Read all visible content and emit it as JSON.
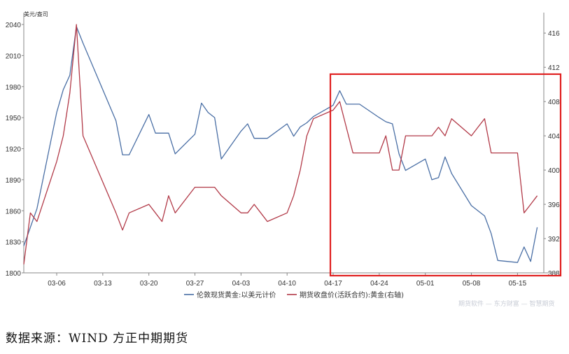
{
  "chart_data": {
    "type": "line",
    "unit_label": "美元/盎司",
    "x_tick_labels": [
      "03-06",
      "03-13",
      "03-20",
      "03-27",
      "04-03",
      "04-10",
      "04-17",
      "04-24",
      "05-01",
      "05-08",
      "05-15"
    ],
    "left_axis": {
      "ticks": [
        1800,
        1830,
        1860,
        1890,
        1920,
        1950,
        1980,
        2010,
        2040
      ],
      "ylim": [
        1800,
        2040
      ]
    },
    "right_axis": {
      "ticks": [
        388,
        392,
        396,
        400,
        404,
        408,
        412,
        416
      ],
      "ylim": [
        388,
        417
      ]
    },
    "grid": false,
    "legend_position": "bottom",
    "series": [
      {
        "name": "伦敦现货黄金:以美元计价",
        "axis": "left",
        "color": "#4a6fa5",
        "x": [
          "2023-03-01",
          "2023-03-02",
          "2023-03-03",
          "2023-03-06",
          "2023-03-07",
          "2023-03-08",
          "2023-03-09",
          "2023-03-10",
          "2023-03-15",
          "2023-03-16",
          "2023-03-17",
          "2023-03-20",
          "2023-03-21",
          "2023-03-22",
          "2023-03-23",
          "2023-03-24",
          "2023-03-27",
          "2023-03-28",
          "2023-03-29",
          "2023-03-30",
          "2023-03-31",
          "2023-04-03",
          "2023-04-04",
          "2023-04-05",
          "2023-04-06",
          "2023-04-07",
          "2023-04-10",
          "2023-04-11",
          "2023-04-12",
          "2023-04-13",
          "2023-04-14",
          "2023-04-17",
          "2023-04-18",
          "2023-04-19",
          "2023-04-20",
          "2023-04-21",
          "2023-04-24",
          "2023-04-25",
          "2023-04-26",
          "2023-04-27",
          "2023-04-28",
          "2023-05-01",
          "2023-05-02",
          "2023-05-03",
          "2023-05-04",
          "2023-05-05",
          "2023-05-08",
          "2023-05-09",
          "2023-05-10",
          "2023-05-11",
          "2023-05-12",
          "2023-05-15",
          "2023-05-16",
          "2023-05-17",
          "2023-05-18"
        ],
        "values": [
          1826,
          1844,
          1862,
          1955,
          1977,
          1991,
          2038,
          2022,
          1947,
          1914,
          1914,
          1953,
          1935,
          1935,
          1935,
          1915,
          1934,
          1964,
          1955,
          1950,
          1910,
          1937,
          1944,
          1930,
          1930,
          1930,
          1944,
          1932,
          1941,
          1945,
          1951,
          1962,
          1976,
          1963,
          1963,
          1963,
          1950,
          1946,
          1944,
          1915,
          1899,
          1910,
          1890,
          1892,
          1912,
          1896,
          1865,
          1860,
          1855,
          1838,
          1812,
          1810,
          1825,
          1811,
          1844
        ]
      },
      {
        "name": "期货收盘价(活跃合约):黄金(右轴)",
        "axis": "right",
        "color": "#b23a48",
        "x": [
          "2023-03-01",
          "2023-03-02",
          "2023-03-03",
          "2023-03-06",
          "2023-03-07",
          "2023-03-08",
          "2023-03-09",
          "2023-03-10",
          "2023-03-15",
          "2023-03-16",
          "2023-03-17",
          "2023-03-20",
          "2023-03-21",
          "2023-03-22",
          "2023-03-23",
          "2023-03-24",
          "2023-03-27",
          "2023-03-28",
          "2023-03-29",
          "2023-03-30",
          "2023-03-31",
          "2023-04-03",
          "2023-04-04",
          "2023-04-05",
          "2023-04-06",
          "2023-04-07",
          "2023-04-10",
          "2023-04-11",
          "2023-04-12",
          "2023-04-13",
          "2023-04-14",
          "2023-04-17",
          "2023-04-18",
          "2023-04-19",
          "2023-04-20",
          "2023-04-21",
          "2023-04-24",
          "2023-04-25",
          "2023-04-26",
          "2023-04-27",
          "2023-04-28",
          "2023-05-01",
          "2023-05-02",
          "2023-05-03",
          "2023-05-04",
          "2023-05-05",
          "2023-05-08",
          "2023-05-09",
          "2023-05-10",
          "2023-05-11",
          "2023-05-12",
          "2023-05-15",
          "2023-05-16",
          "2023-05-17",
          "2023-05-18"
        ],
        "values": [
          389,
          395,
          394,
          401,
          404,
          409,
          417,
          404,
          395,
          393,
          395,
          396,
          395,
          394,
          397,
          395,
          398,
          398,
          398,
          398,
          397,
          395,
          395,
          396,
          395,
          394,
          395,
          397,
          400,
          404,
          406,
          407,
          408,
          405,
          402,
          402,
          402,
          404,
          400,
          400,
          404,
          404,
          404,
          405,
          404,
          406,
          404,
          405,
          406,
          402,
          402,
          402,
          395,
          396,
          397
        ]
      }
    ],
    "annotation": "red rectangle highlighting 04-17 to 05-19"
  },
  "source_text": "数据来源：WIND 方正中期期货",
  "watermark_text": "期货软件 — 东方财富 — 智慧期货"
}
